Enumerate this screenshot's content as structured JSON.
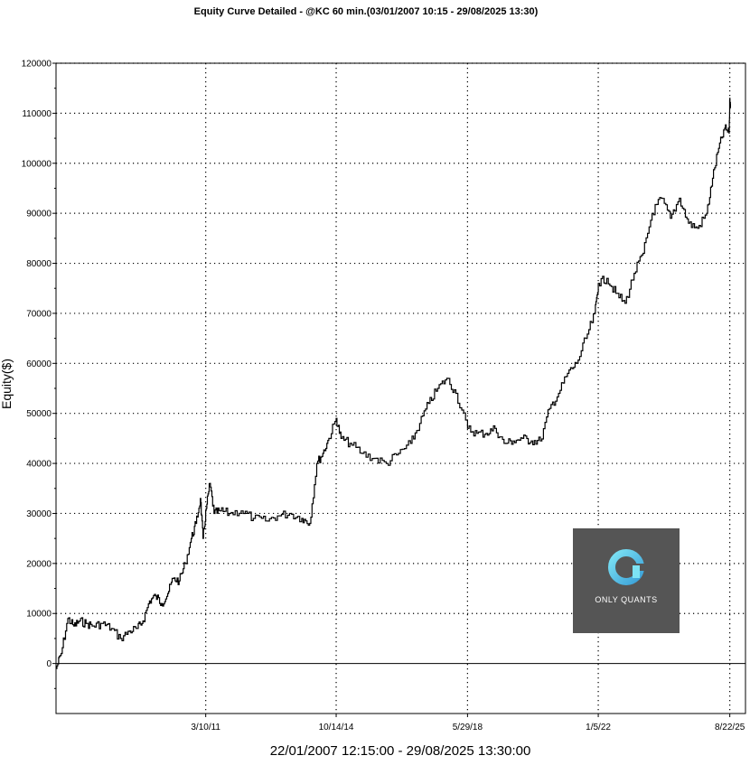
{
  "chart_data": {
    "type": "line",
    "title": "Equity Curve Detailed - @KC 60 min.(03/01/2007 10:15 - 29/08/2025 13:30)",
    "xlabel": "22/01/2007 12:15:00 - 29/08/2025 13:30:00",
    "ylabel": "Equity($)",
    "ylim": [
      -10000,
      120000
    ],
    "yticks": [
      0,
      10000,
      20000,
      30000,
      40000,
      50000,
      60000,
      70000,
      80000,
      90000,
      100000,
      110000,
      120000
    ],
    "xlim": [
      "2007-01-22",
      "2026-01-27"
    ],
    "xticks": [
      {
        "date": "2011-03-10",
        "label": "3/10/11"
      },
      {
        "date": "2014-10-14",
        "label": "10/14/14"
      },
      {
        "date": "2018-05-29",
        "label": "5/29/18"
      },
      {
        "date": "2022-01-05",
        "label": "1/5/22"
      },
      {
        "date": "2025-08-22",
        "label": "8/22/25"
      }
    ],
    "grid": true,
    "zero_line": true,
    "line_color": "#000000",
    "series": [
      {
        "x": [
          "2007-01-22",
          "2007-03-15",
          "2007-05-20",
          "2007-07-20",
          "2007-09-15",
          "2007-11-20",
          "2008-02-01",
          "2008-05-01",
          "2008-08-01",
          "2008-11-01",
          "2009-02-01",
          "2009-04-20",
          "2009-06-15",
          "2009-08-20",
          "2009-10-20",
          "2009-12-20",
          "2010-02-20",
          "2010-04-15",
          "2010-06-15",
          "2010-08-15",
          "2010-10-15",
          "2010-12-01",
          "2011-01-15",
          "2011-02-10",
          "2011-03-15",
          "2011-04-20",
          "2011-06-01",
          "2011-08-01",
          "2011-11-01",
          "2012-03-01",
          "2012-07-01",
          "2012-11-01",
          "2013-03-01",
          "2013-07-01",
          "2013-11-01",
          "2014-01-20",
          "2014-04-01",
          "2014-06-01",
          "2014-08-01",
          "2014-10-14",
          "2014-12-01",
          "2015-03-01",
          "2015-07-01",
          "2015-11-01",
          "2016-03-01",
          "2016-07-01",
          "2016-11-01",
          "2017-02-01",
          "2017-05-01",
          "2017-08-01",
          "2017-11-01",
          "2018-02-01",
          "2018-05-29",
          "2018-09-01",
          "2018-12-01",
          "2019-03-01",
          "2019-06-01",
          "2019-09-01",
          "2019-12-01",
          "2020-03-01",
          "2020-06-01",
          "2020-09-01",
          "2020-12-01",
          "2021-03-01",
          "2021-06-01",
          "2021-09-01",
          "2021-12-01",
          "2022-01-05",
          "2022-04-01",
          "2022-07-01",
          "2022-10-01",
          "2023-01-01",
          "2023-04-01",
          "2023-07-01",
          "2023-10-01",
          "2024-01-01",
          "2024-04-01",
          "2024-07-01",
          "2024-10-01",
          "2025-01-01",
          "2025-03-01",
          "2025-05-01",
          "2025-07-01",
          "2025-08-15",
          "2025-08-22",
          "2025-08-29"
        ],
        "y": [
          -1000,
          2000,
          9000,
          7500,
          8500,
          8000,
          7500,
          8000,
          7000,
          5000,
          6500,
          7000,
          8500,
          12500,
          13500,
          12000,
          14000,
          17000,
          16500,
          20000,
          25000,
          28000,
          33000,
          25000,
          31000,
          36000,
          30000,
          30500,
          30000,
          30500,
          29000,
          28500,
          29500,
          30000,
          29000,
          28000,
          40000,
          42000,
          45000,
          49000,
          45000,
          44000,
          42000,
          41000,
          40000,
          42000,
          44000,
          48000,
          52000,
          55000,
          57000,
          54000,
          47000,
          46000,
          46000,
          47000,
          44000,
          44500,
          45000,
          44500,
          44500,
          51000,
          54000,
          58000,
          60000,
          65000,
          70000,
          76000,
          77000,
          74000,
          72000,
          78000,
          82000,
          90000,
          93000,
          89000,
          93000,
          88000,
          87000,
          90000,
          97000,
          103000,
          107000,
          106000,
          113000,
          111000
        ]
      }
    ]
  },
  "logo": {
    "text": "ONLY QUANTS",
    "background": "#555555",
    "ring_gradient": [
      "#7de3f4",
      "#3aa0d8"
    ]
  }
}
